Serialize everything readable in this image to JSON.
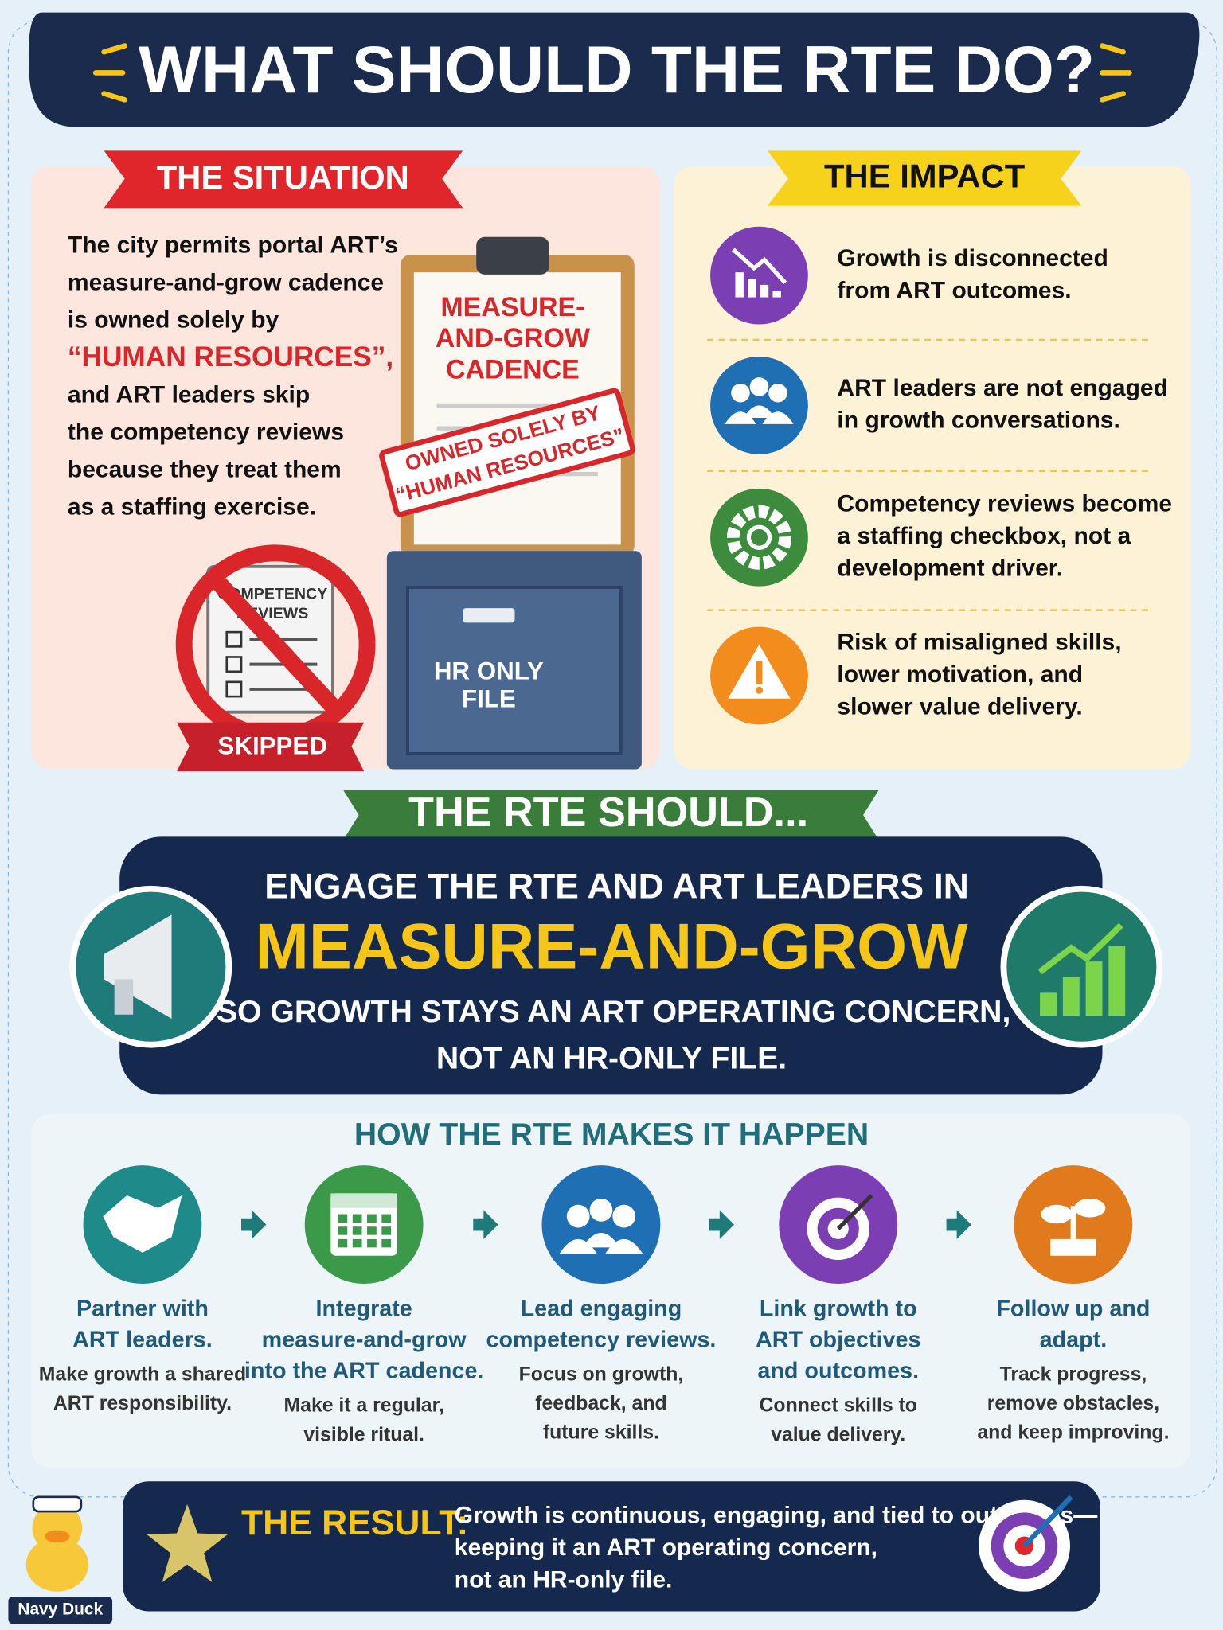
{
  "title": "WHAT SHOULD THE RTE DO?",
  "situation": {
    "heading": "THE SITUATION",
    "lines": [
      "The city permits portal ART’s",
      "measure-and-grow cadence",
      "is owned solely by",
      "“HUMAN RESOURCES”,",
      "and ART leaders skip",
      "the competency reviews",
      "because they treat them",
      "as a staffing exercise."
    ],
    "clipboard": [
      "MEASURE-",
      "AND-GROW",
      "CADENCE"
    ],
    "stamp": [
      "OWNED SOLELY BY",
      "“HUMAN RESOURCES”"
    ],
    "cabinet": [
      "HR ONLY",
      "FILE"
    ],
    "skipped_clipboard": [
      "COMPETENCY",
      "REVIEWS"
    ],
    "skipped": "SKIPPED"
  },
  "impact": {
    "heading": "THE IMPACT",
    "items": [
      {
        "lines": [
          "Growth is disconnected",
          "from ART outcomes."
        ]
      },
      {
        "lines": [
          "ART leaders are not engaged",
          "in growth conversations."
        ]
      },
      {
        "lines": [
          "Competency reviews become",
          "a staffing checkbox, not a",
          "development driver."
        ]
      },
      {
        "lines": [
          "Risk of misaligned skills,",
          "lower motivation, and",
          "slower value delivery."
        ]
      }
    ]
  },
  "rte_should": {
    "banner": "THE RTE SHOULD...",
    "line1": "ENGAGE THE RTE AND ART LEADERS IN",
    "highlight": "MEASURE-AND-GROW",
    "line2": "SO GROWTH STAYS AN ART OPERATING CONCERN,",
    "line3": "NOT AN HR-ONLY FILE."
  },
  "how": {
    "heading": "HOW THE RTE MAKES IT HAPPEN",
    "steps": [
      {
        "title": [
          "Partner with",
          "ART leaders."
        ],
        "desc": [
          "Make growth a shared",
          "ART responsibility."
        ]
      },
      {
        "title": [
          "Integrate",
          "measure-and-grow",
          "into the ART cadence."
        ],
        "desc": [
          "Make it a regular,",
          "visible ritual."
        ]
      },
      {
        "title": [
          "Lead engaging",
          "competency reviews."
        ],
        "desc": [
          "Focus on growth,",
          "feedback, and",
          "future skills."
        ]
      },
      {
        "title": [
          "Link growth to",
          "ART objectives",
          "and outcomes."
        ],
        "desc": [
          "Connect skills to",
          "value delivery."
        ]
      },
      {
        "title": [
          "Follow up and",
          "adapt."
        ],
        "desc": [
          "Track progress,",
          "remove obstacles,",
          "and keep improving."
        ]
      }
    ]
  },
  "result": {
    "label": "THE RESULT:",
    "lines": [
      "Growth is continuous, engaging, and tied to outcomes—",
      "keeping it an ART operating concern,",
      "not an HR-only file."
    ]
  },
  "mascot": {
    "label": "Navy Duck"
  }
}
